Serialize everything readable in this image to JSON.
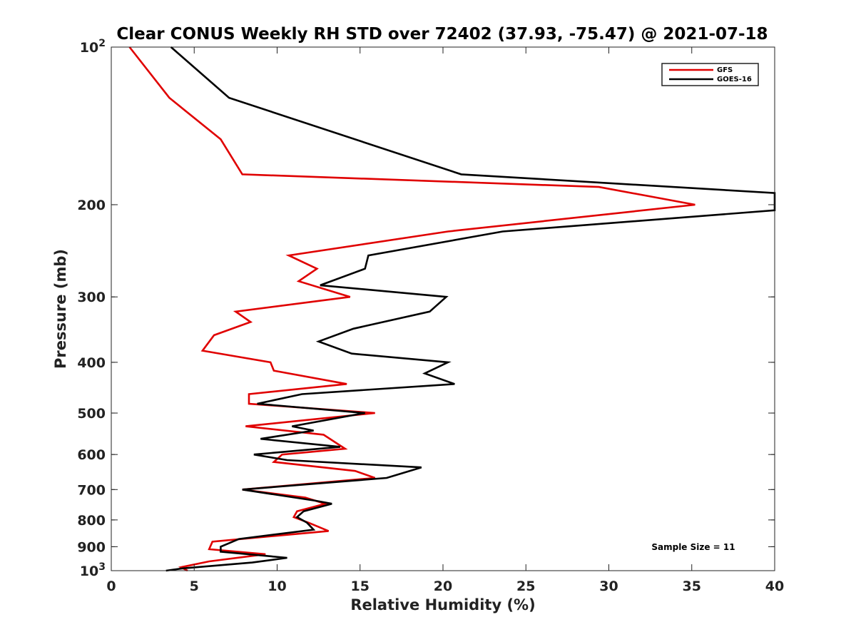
{
  "chart_data": {
    "type": "line",
    "title": "Clear CONUS Weekly RH STD over 72402 (37.93, -75.47) @ 2021-07-18",
    "xlabel": "Relative Humidity (%)",
    "ylabel": "Pressure (mb)",
    "xlim": [
      0,
      40
    ],
    "ylim": [
      100,
      1000
    ],
    "yscale": "log",
    "yreversed": true,
    "x_ticks": [
      0,
      5,
      10,
      15,
      20,
      25,
      30,
      35,
      40
    ],
    "y_ticks": [
      {
        "value": 100,
        "base": "10",
        "exp": "2"
      },
      {
        "value": 200,
        "label": "200"
      },
      {
        "value": 300,
        "label": "300"
      },
      {
        "value": 400,
        "label": "400"
      },
      {
        "value": 500,
        "label": "500"
      },
      {
        "value": 600,
        "label": "600"
      },
      {
        "value": 700,
        "label": "700"
      },
      {
        "value": 800,
        "label": "800"
      },
      {
        "value": 900,
        "label": "900"
      },
      {
        "value": 1000,
        "base": "10",
        "exp": "3"
      }
    ],
    "legend_position": "top-right",
    "annotation": "Sample Size = 11",
    "series": [
      {
        "name": "GFS",
        "color": "#e00000",
        "points": [
          [
            1.1,
            100
          ],
          [
            3.5,
            125
          ],
          [
            6.6,
            150
          ],
          [
            7.9,
            175
          ],
          [
            29.4,
            185
          ],
          [
            35.2,
            200
          ],
          [
            20.3,
            225
          ],
          [
            10.7,
            250
          ],
          [
            12.4,
            265
          ],
          [
            11.3,
            280
          ],
          [
            14.4,
            300
          ],
          [
            7.5,
            320
          ],
          [
            8.4,
            335
          ],
          [
            6.2,
            355
          ],
          [
            5.5,
            380
          ],
          [
            9.6,
            400
          ],
          [
            9.8,
            415
          ],
          [
            14.2,
            440
          ],
          [
            8.3,
            460
          ],
          [
            8.3,
            480
          ],
          [
            15.9,
            500
          ],
          [
            8.1,
            530
          ],
          [
            12.8,
            550
          ],
          [
            14.1,
            585
          ],
          [
            10.3,
            600
          ],
          [
            9.8,
            620
          ],
          [
            14.7,
            645
          ],
          [
            15.9,
            665
          ],
          [
            7.9,
            700
          ],
          [
            11.7,
            725
          ],
          [
            12.9,
            745
          ],
          [
            11.2,
            770
          ],
          [
            11.0,
            790
          ],
          [
            11.9,
            810
          ],
          [
            13.1,
            840
          ],
          [
            6.1,
            880
          ],
          [
            5.9,
            910
          ],
          [
            9.3,
            930
          ],
          [
            5.9,
            960
          ],
          [
            4.2,
            985
          ],
          [
            4.6,
            1000
          ]
        ]
      },
      {
        "name": "GOES-16",
        "color": "#000000",
        "points": [
          [
            3.6,
            100
          ],
          [
            7.1,
            125
          ],
          [
            21.1,
            175
          ],
          [
            40.0,
            190
          ],
          [
            40.0,
            205
          ],
          [
            23.6,
            225
          ],
          [
            15.5,
            250
          ],
          [
            15.3,
            265
          ],
          [
            12.6,
            285
          ],
          [
            20.2,
            300
          ],
          [
            19.2,
            320
          ],
          [
            14.6,
            345
          ],
          [
            12.5,
            365
          ],
          [
            14.5,
            385
          ],
          [
            20.3,
            400
          ],
          [
            18.9,
            420
          ],
          [
            20.7,
            440
          ],
          [
            11.5,
            460
          ],
          [
            8.8,
            480
          ],
          [
            15.3,
            500
          ],
          [
            10.9,
            530
          ],
          [
            12.2,
            540
          ],
          [
            9.0,
            560
          ],
          [
            13.8,
            580
          ],
          [
            8.6,
            600
          ],
          [
            10.6,
            615
          ],
          [
            18.7,
            635
          ],
          [
            16.6,
            665
          ],
          [
            7.9,
            700
          ],
          [
            12.3,
            735
          ],
          [
            13.3,
            745
          ],
          [
            11.6,
            770
          ],
          [
            11.2,
            790
          ],
          [
            11.8,
            810
          ],
          [
            12.2,
            835
          ],
          [
            7.7,
            870
          ],
          [
            6.6,
            900
          ],
          [
            6.6,
            920
          ],
          [
            10.6,
            945
          ],
          [
            8.5,
            965
          ],
          [
            4.3,
            990
          ],
          [
            3.3,
            1000
          ]
        ]
      }
    ]
  }
}
